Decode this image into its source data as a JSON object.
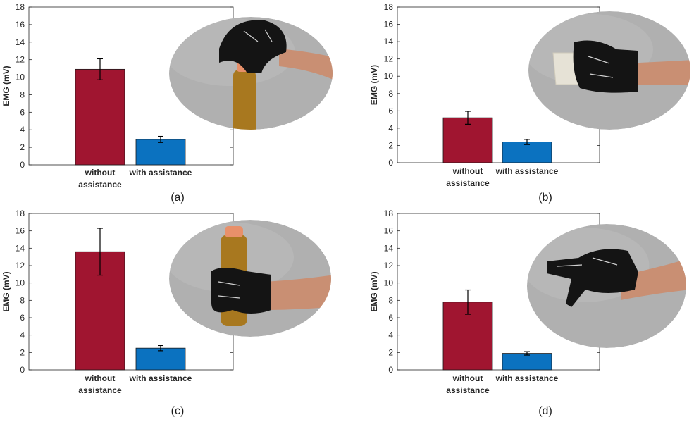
{
  "colors": {
    "without": "#a01530",
    "with": "#0b72c0",
    "photo_bg": "#b0b0b0",
    "glove": "#141414",
    "skin": "#c98f73",
    "bottle_liquid": "#a8781f",
    "bottle_cap": "#e8906a"
  },
  "chart_data": [
    {
      "type": "bar",
      "panel_label": "(a)",
      "ylabel": "EMG (mV)",
      "ylim": [
        0,
        18
      ],
      "yticks": [
        "0",
        "2",
        "4",
        "6",
        "8",
        "10",
        "12",
        "14",
        "16",
        "18"
      ],
      "categories": [
        [
          "without",
          "assistance"
        ],
        [
          "with assistance"
        ]
      ],
      "values": [
        10.9,
        2.9
      ],
      "errors": [
        1.2,
        0.35
      ],
      "photo": "glove-opening-bottle-cap",
      "grid": false
    },
    {
      "type": "bar",
      "panel_label": "(b)",
      "ylabel": "EMG (mV)",
      "ylim": [
        0,
        18
      ],
      "yticks": [
        "0",
        "2",
        "4",
        "6",
        "8",
        "10",
        "12",
        "14",
        "16",
        "18"
      ],
      "categories": [
        [
          "without",
          "assistance"
        ],
        [
          "with assistance"
        ]
      ],
      "values": [
        5.2,
        2.4
      ],
      "errors": [
        0.75,
        0.3
      ],
      "photo": "glove-holding-cup",
      "grid": false
    },
    {
      "type": "bar",
      "panel_label": "(c)",
      "ylabel": "EMG (mV)",
      "ylim": [
        0,
        18
      ],
      "yticks": [
        "0",
        "2",
        "4",
        "6",
        "8",
        "10",
        "12",
        "14",
        "16",
        "18"
      ],
      "categories": [
        [
          "without",
          "assistance"
        ],
        [
          "with assistance"
        ]
      ],
      "values": [
        13.6,
        2.5
      ],
      "errors": [
        2.7,
        0.3
      ],
      "photo": "glove-gripping-bottle",
      "grid": false
    },
    {
      "type": "bar",
      "panel_label": "(d)",
      "ylabel": "EMG (mV)",
      "ylim": [
        0,
        18
      ],
      "yticks": [
        "0",
        "2",
        "4",
        "6",
        "8",
        "10",
        "12",
        "14",
        "16",
        "18"
      ],
      "categories": [
        [
          "without",
          "assistance"
        ],
        [
          "with assistance"
        ]
      ],
      "values": [
        7.8,
        1.9
      ],
      "errors": [
        1.4,
        0.2
      ],
      "photo": "glove-pointing-gesture",
      "grid": false
    }
  ]
}
